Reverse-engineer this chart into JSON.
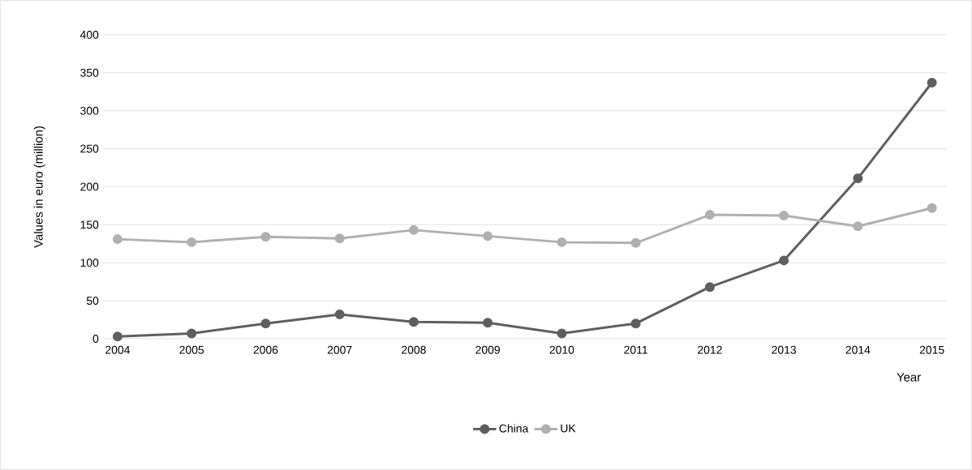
{
  "chart_data": {
    "type": "line",
    "xlabel": "Year",
    "ylabel": "Values in euro (million)",
    "categories": [
      "2004",
      "2005",
      "2006",
      "2007",
      "2008",
      "2009",
      "2010",
      "2011",
      "2012",
      "2013",
      "2014",
      "2015"
    ],
    "series": [
      {
        "name": "China",
        "color": "#5f5f5f",
        "values": [
          3,
          7,
          20,
          32,
          22,
          21,
          7,
          20,
          68,
          103,
          211,
          337
        ]
      },
      {
        "name": "UK",
        "color": "#b0b0b0",
        "values": [
          131,
          127,
          134,
          132,
          143,
          135,
          127,
          126,
          163,
          162,
          148,
          172
        ]
      }
    ],
    "ylim": [
      0,
      400
    ],
    "yticks": [
      0,
      50,
      100,
      150,
      200,
      250,
      300,
      350,
      400
    ],
    "grid": "y",
    "legend": "bottom",
    "marker": "circle",
    "line_style": "solid"
  }
}
